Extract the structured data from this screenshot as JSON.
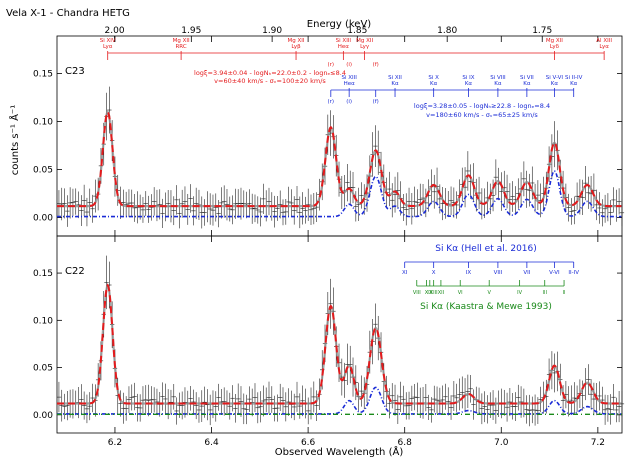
{
  "title": "Vela X-1 - Chandra HETG",
  "chart_data": {
    "type": "line",
    "xlabel": "Observed Wavelength (Å)",
    "ylabel": "counts s⁻¹ Å⁻¹",
    "top_axis_label": "Energy (keV)",
    "xlim": [
      6.08,
      7.25
    ],
    "x_ticks": [
      6.2,
      6.4,
      6.6,
      6.8,
      7.0,
      7.2
    ],
    "top_ticks": [
      2.0,
      1.95,
      1.9,
      1.85,
      1.8,
      1.75
    ],
    "ylim": [
      -0.015,
      0.185
    ],
    "y_ticks": [
      0.0,
      0.05,
      0.1,
      0.15
    ],
    "panels": [
      {
        "id": "C23",
        "label": "C23",
        "lines": [
          {
            "center": 6.185,
            "amp": 0.098,
            "sigma": 0.01
          },
          {
            "center": 6.647,
            "amp": 0.082,
            "sigma": 0.011
          },
          {
            "center": 6.685,
            "amp": 0.018,
            "sigma": 0.01
          },
          {
            "center": 6.74,
            "amp": 0.058,
            "sigma": 0.012
          },
          {
            "center": 6.78,
            "amp": 0.015,
            "sigma": 0.01
          },
          {
            "center": 6.86,
            "amp": 0.022,
            "sigma": 0.012
          },
          {
            "center": 6.932,
            "amp": 0.032,
            "sigma": 0.012
          },
          {
            "center": 6.993,
            "amp": 0.026,
            "sigma": 0.012
          },
          {
            "center": 7.053,
            "amp": 0.025,
            "sigma": 0.012
          },
          {
            "center": 7.11,
            "amp": 0.066,
            "sigma": 0.011
          },
          {
            "center": 7.178,
            "amp": 0.022,
            "sigma": 0.012
          }
        ],
        "baseline": 0.012,
        "blue_scale": 0.72,
        "green_shown": false,
        "annotations": {
          "red_top": [
            {
              "x": 6.185,
              "l1": "Si XIV",
              "l2": "Lyα"
            },
            {
              "x": 6.337,
              "l1": "Mg XII",
              "l2": "RRC"
            },
            {
              "x": 6.575,
              "l1": "Mg XII",
              "l2": "Lyβ"
            },
            {
              "x": 6.673,
              "l1": "Si XIII",
              "l2": "Heα"
            },
            {
              "x": 6.717,
              "l1": "Mg XII",
              "l2": "Lyγ"
            },
            {
              "x": 7.11,
              "l1": "Mg XII",
              "l2": "Lyδ"
            },
            {
              "x": 7.213,
              "l1": "Al XIII",
              "l2": "Lyα"
            }
          ],
          "rif_red": [
            {
              "x": 6.647,
              "t": "(r)"
            },
            {
              "x": 6.685,
              "t": "(i)"
            },
            {
              "x": 6.74,
              "t": "(f)"
            }
          ],
          "blue_ions": [
            {
              "x": 6.685,
              "l1": "Si XIII",
              "l2": "Heα"
            },
            {
              "x": 6.78,
              "l1": "Si XII",
              "l2": "Kα"
            },
            {
              "x": 6.86,
              "l1": "Si X",
              "l2": "Kα"
            },
            {
              "x": 6.932,
              "l1": "Si IX",
              "l2": "Kα"
            },
            {
              "x": 6.993,
              "l1": "Si VIII",
              "l2": "Kα"
            },
            {
              "x": 7.053,
              "l1": "Si VII",
              "l2": "Kα"
            },
            {
              "x": 7.11,
              "l1": "Si V-VI",
              "l2": "Kα"
            },
            {
              "x": 7.15,
              "l1": "Si II-IV",
              "l2": "Kα"
            }
          ],
          "rif_blue": [
            {
              "x": 6.647,
              "t": "(r)"
            },
            {
              "x": 6.685,
              "t": "(i)"
            },
            {
              "x": 6.74,
              "t": "(f)"
            }
          ],
          "red_params_1": "logξ=3.94±0.04 - logNₕ=22.0±0.2 - lognₑ≤8.4",
          "red_params_2": "v=60±40 km/s - σᵥ=100±20 km/s",
          "blue_params_1": "logξ=3.28±0.05 - logNₕ≥22.8 - lognₑ=8.4",
          "blue_params_2": "v=180±60 km/s - σᵥ=65±25 km/s"
        }
      },
      {
        "id": "C22",
        "label": "C22",
        "lines": [
          {
            "center": 6.185,
            "amp": 0.125,
            "sigma": 0.01
          },
          {
            "center": 6.647,
            "amp": 0.103,
            "sigma": 0.011
          },
          {
            "center": 6.685,
            "amp": 0.04,
            "sigma": 0.01
          },
          {
            "center": 6.74,
            "amp": 0.08,
            "sigma": 0.012
          },
          {
            "center": 6.932,
            "amp": 0.01,
            "sigma": 0.012
          },
          {
            "center": 7.11,
            "amp": 0.04,
            "sigma": 0.011
          },
          {
            "center": 7.178,
            "amp": 0.022,
            "sigma": 0.012
          }
        ],
        "baseline": 0.012,
        "blue_scale": 0.35,
        "green_shown": true,
        "annotations": {
          "hell_label": "Si Kα (Hell et al. 2016)",
          "kaastra_label": "Si Kα (Kaastra & Mewe 1993)",
          "hell_ticks": [
            {
              "x": 6.8,
              "t": "XI"
            },
            {
              "x": 6.86,
              "t": "X"
            },
            {
              "x": 6.932,
              "t": "IX"
            },
            {
              "x": 6.993,
              "t": "VIII"
            },
            {
              "x": 7.053,
              "t": "VII"
            },
            {
              "x": 7.11,
              "t": "V-VI"
            },
            {
              "x": 7.15,
              "t": "II-IV"
            }
          ],
          "kaastra_ticks": [
            {
              "x": 6.825,
              "t": "VIII"
            },
            {
              "x": 6.845,
              "t": "X"
            },
            {
              "x": 6.852,
              "t": "IX"
            },
            {
              "x": 6.86,
              "t": "XIII"
            },
            {
              "x": 6.875,
              "t": "XII"
            },
            {
              "x": 6.915,
              "t": "VI"
            },
            {
              "x": 6.975,
              "t": "V"
            },
            {
              "x": 7.038,
              "t": "IV"
            },
            {
              "x": 7.09,
              "t": "III"
            },
            {
              "x": 7.13,
              "t": "II"
            }
          ]
        }
      }
    ]
  },
  "colors": {
    "data": "#222222",
    "model_grey": "#888888",
    "red_model": "#e41a1c",
    "blue_model": "#1a2bd6",
    "green_model": "#1a8a1a",
    "red_text": "#e41a1c",
    "blue_text": "#1a2bd6",
    "green_text": "#1a8a1a"
  }
}
